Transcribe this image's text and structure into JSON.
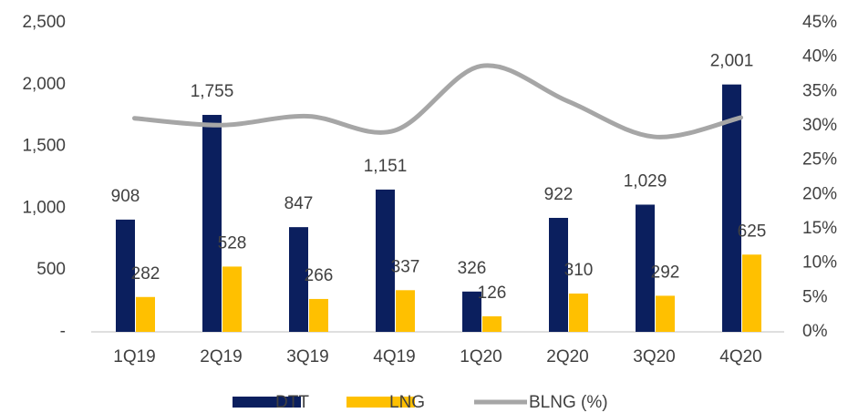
{
  "chart_data": {
    "type": "bar-line",
    "categories": [
      "1Q19",
      "2Q19",
      "3Q19",
      "4Q19",
      "1Q20",
      "2Q20",
      "3Q20",
      "4Q20"
    ],
    "series": [
      {
        "name": "DTT",
        "type": "bar",
        "color": "#0b1f5e",
        "values": [
          908,
          1755,
          847,
          1151,
          326,
          922,
          1029,
          2001
        ],
        "value_labels": [
          "908",
          "1,755",
          "847",
          "1,151",
          "326",
          "922",
          "1,029",
          "2,001"
        ]
      },
      {
        "name": "LNG",
        "type": "bar",
        "color": "#ffc000",
        "values": [
          282,
          528,
          266,
          337,
          126,
          310,
          292,
          625
        ]
      },
      {
        "name": "BLNG (%)",
        "type": "line",
        "axis": "y2",
        "color": "#a6a6a6",
        "values": [
          31.1,
          30.1,
          31.4,
          29.3,
          38.7,
          33.6,
          28.4,
          31.2
        ]
      }
    ],
    "ylim": [
      0,
      2500
    ],
    "yticks": [
      {
        "value": 0,
        "label": "-"
      },
      500,
      {
        "value": 1000,
        "label": "1,000"
      },
      {
        "value": 1500,
        "label": "1,500"
      },
      {
        "value": 2000,
        "label": "2,000"
      },
      {
        "value": 2500,
        "label": "2,500"
      }
    ],
    "y2lim": [
      0,
      45
    ],
    "y2ticks": [
      {
        "value": 0,
        "label": "0%"
      },
      {
        "value": 5,
        "label": "5%"
      },
      {
        "value": 10,
        "label": "10%"
      },
      {
        "value": 15,
        "label": "15%"
      },
      {
        "value": 20,
        "label": "20%"
      },
      {
        "value": 25,
        "label": "25%"
      },
      {
        "value": 30,
        "label": "30%"
      },
      {
        "value": 35,
        "label": "35%"
      },
      {
        "value": 40,
        "label": "40%"
      },
      {
        "value": 45,
        "label": "45%"
      }
    ],
    "legend": "bottom",
    "grid": false
  }
}
